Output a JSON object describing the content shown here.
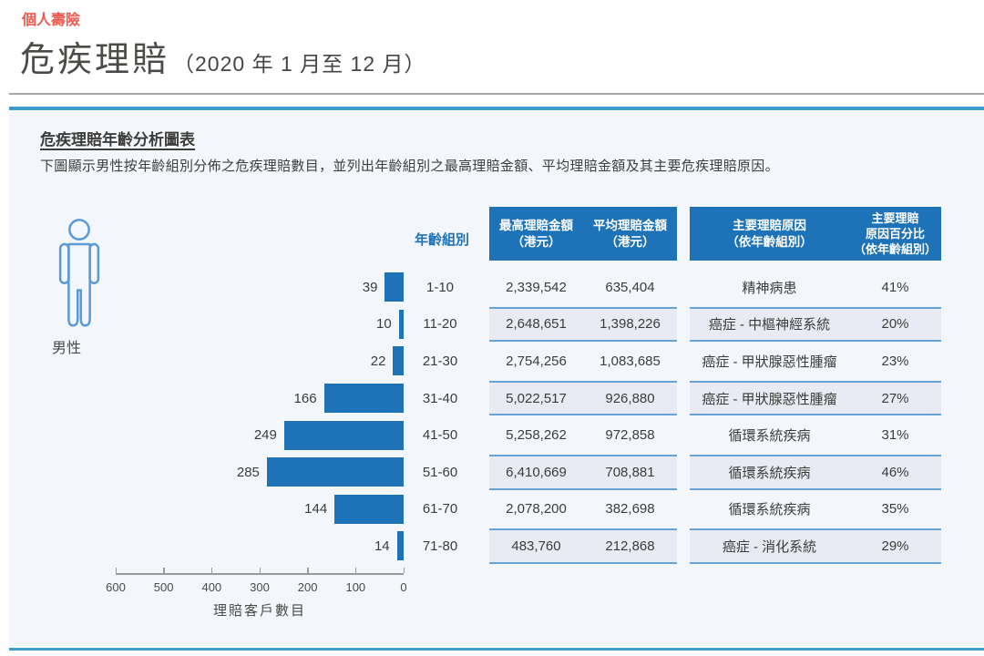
{
  "header": {
    "eyebrow": "個人壽險",
    "title": "危疾理賠",
    "period": "（2020 年 1 月至 12 月）"
  },
  "panel": {
    "heading": "危疾理賠年齡分析圖表",
    "description": "下圖顯示男性按年齡組別分佈之危疾理賠數目，並列出年齡組別之最高理賠金額、平均理賠金額及其主要危疾理賠原因。",
    "gender_label": "男性",
    "person_icon": "male-outline-icon"
  },
  "chart_data": {
    "type": "bar",
    "orientation": "horizontal-right-to-left",
    "title": "危疾理賠年齡分析圖表",
    "categories": [
      "1-10",
      "11-20",
      "21-30",
      "31-40",
      "41-50",
      "51-60",
      "61-70",
      "71-80"
    ],
    "values": [
      39,
      10,
      22,
      166,
      249,
      285,
      144,
      14
    ],
    "xlabel": "理賠客戶數目",
    "xlim": [
      0,
      600
    ],
    "x_ticks": [
      600,
      500,
      400,
      300,
      200,
      100,
      0
    ],
    "bar_color": "#1d72b8",
    "legend": "none",
    "columns": {
      "age": "年齡組別",
      "max": "最高理賠金額\n（港元）",
      "avg": "平均理賠金額\n（港元）",
      "reason": "主要理賠原因\n（依年齡組別）",
      "pct": "主要理賠\n原因百分比\n（依年齡組別）"
    },
    "rows": [
      {
        "age": "1-10",
        "count": "39",
        "max": "2,339,542",
        "avg": "635,404",
        "reason": "精神病患",
        "pct": "41%"
      },
      {
        "age": "11-20",
        "count": "10",
        "max": "2,648,651",
        "avg": "1,398,226",
        "reason": "癌症 - 中樞神經系統",
        "pct": "20%"
      },
      {
        "age": "21-30",
        "count": "22",
        "max": "2,754,256",
        "avg": "1,083,685",
        "reason": "癌症 - 甲狀腺惡性腫瘤",
        "pct": "23%"
      },
      {
        "age": "31-40",
        "count": "166",
        "max": "5,022,517",
        "avg": "926,880",
        "reason": "癌症 - 甲狀腺惡性腫瘤",
        "pct": "27%"
      },
      {
        "age": "41-50",
        "count": "249",
        "max": "5,258,262",
        "avg": "972,858",
        "reason": "循環系統疾病",
        "pct": "31%"
      },
      {
        "age": "51-60",
        "count": "285",
        "max": "6,410,669",
        "avg": "708,881",
        "reason": "循環系統疾病",
        "pct": "46%"
      },
      {
        "age": "61-70",
        "count": "144",
        "max": "2,078,200",
        "avg": "382,698",
        "reason": "循環系統疾病",
        "pct": "35%"
      },
      {
        "age": "71-80",
        "count": "14",
        "max": "483,760",
        "avg": "212,868",
        "reason": "癌症 - 消化系統",
        "pct": "29%"
      }
    ]
  },
  "colors": {
    "accent_red": "#ee5a50",
    "bar_blue": "#1d72b8",
    "rule_blue": "#3e9ccd",
    "row_shade_bg": "#e9ebf4",
    "row_shade_border": "#66a3d8",
    "panel_bg": "#f3f6fa",
    "icon_blue": "#5b9bd5"
  }
}
